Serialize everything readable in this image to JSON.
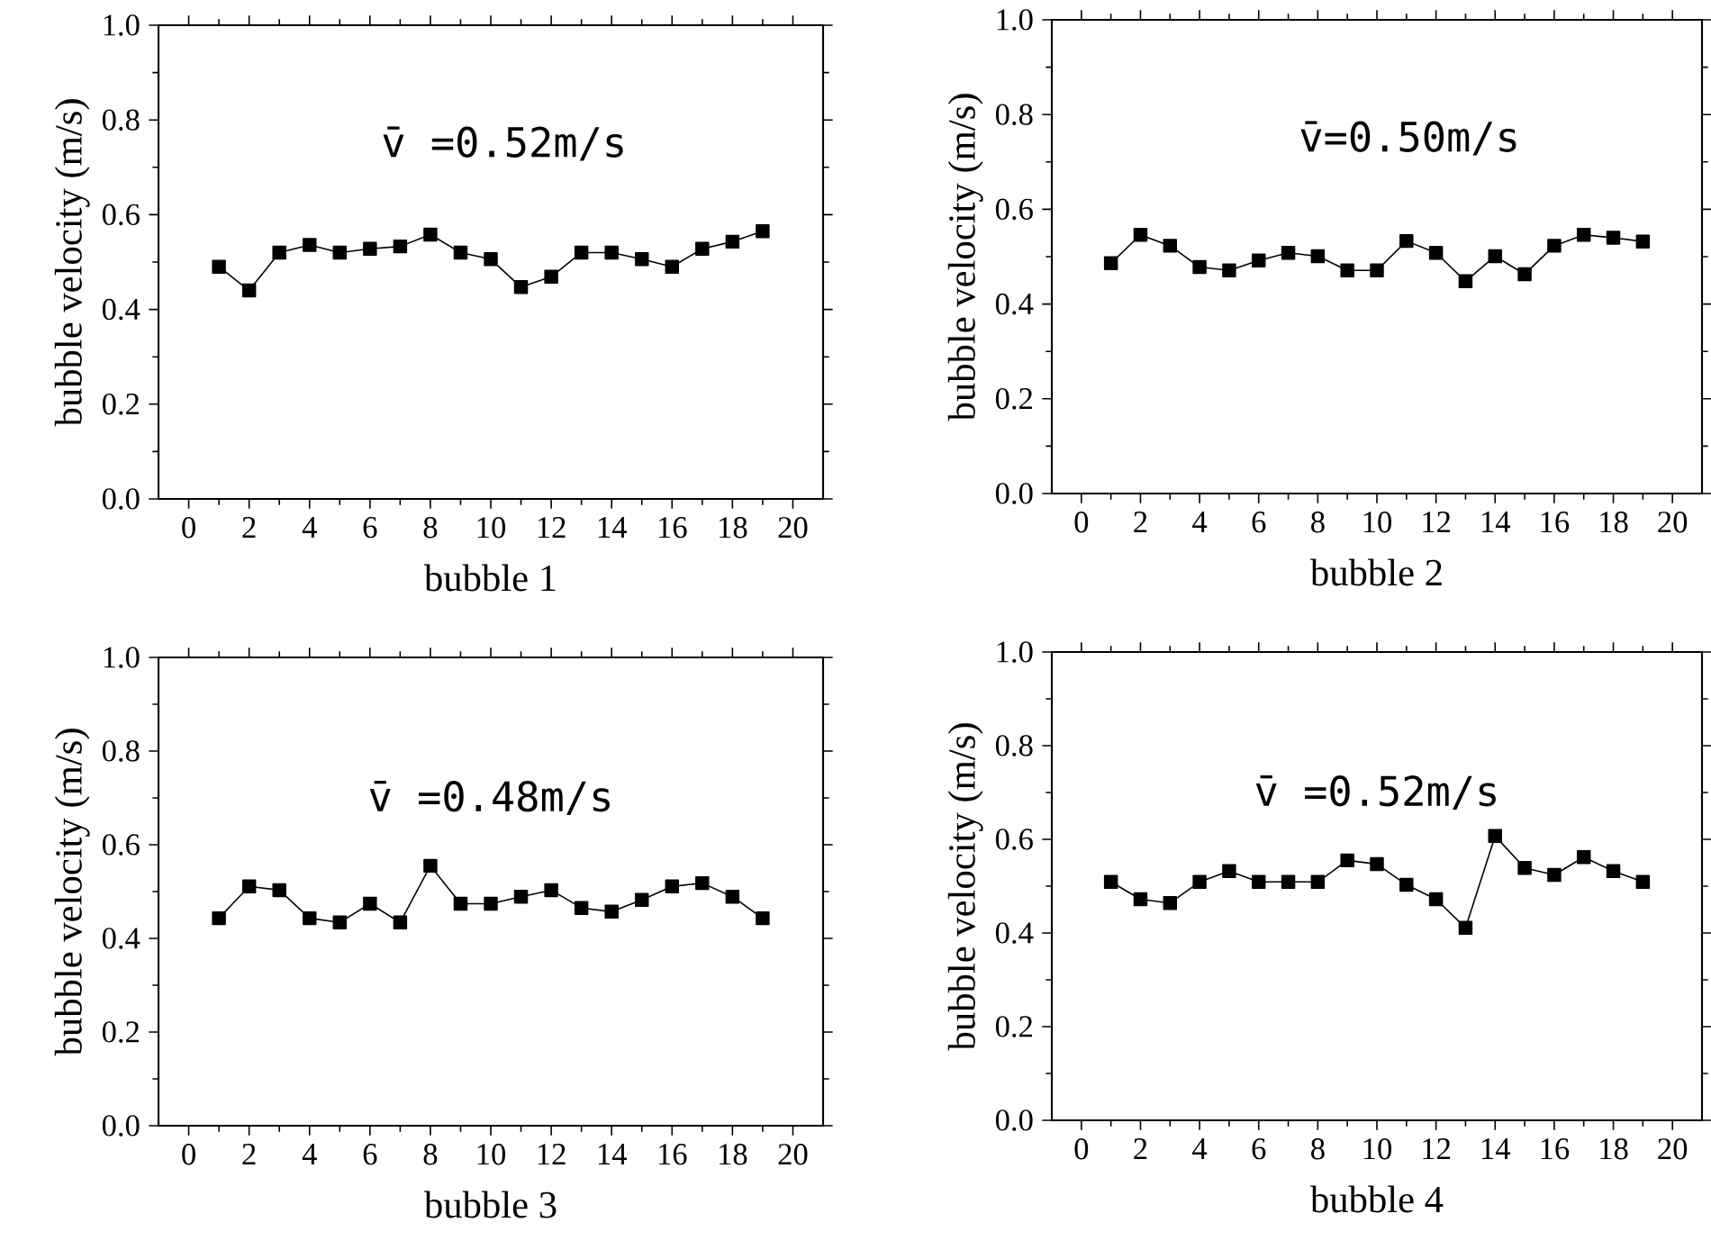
{
  "chart_data": [
    {
      "type": "line",
      "xlabel": "bubble 1",
      "ylabel": "bubble velocity (m/s)",
      "annotations": [
        "v̄ =0.52m/s"
      ],
      "marker": "square",
      "x": [
        1,
        2,
        3,
        4,
        5,
        6,
        7,
        8,
        9,
        10,
        11,
        12,
        13,
        14,
        15,
        16,
        17,
        18,
        19
      ],
      "xlim": [
        -1,
        21
      ],
      "xticks": [
        0,
        2,
        4,
        6,
        8,
        10,
        12,
        14,
        16,
        18,
        20
      ],
      "ylim": [
        0,
        1
      ],
      "yticks": [
        {
          "value": 0,
          "label": "0.0"
        },
        {
          "value": 0.2,
          "label": "0.2"
        },
        {
          "value": 0.4,
          "label": "0.4"
        },
        {
          "value": 0.6,
          "label": "0.6"
        },
        {
          "value": 0.8,
          "label": "0.8"
        },
        {
          "value": 1,
          "label": "1.0"
        }
      ],
      "series": [
        {
          "color": "#000000",
          "values": [
            0.49,
            0.44,
            0.52,
            0.536,
            0.52,
            0.528,
            0.533,
            0.558,
            0.52,
            0.506,
            0.447,
            0.469,
            0.52,
            0.52,
            0.506,
            0.49,
            0.528,
            0.543,
            0.565
          ]
        }
      ]
    },
    {
      "type": "line",
      "xlabel": "bubble 2",
      "ylabel": "bubble velocity (m/s)",
      "annotations": [
        "v̄=0.50m/s"
      ],
      "marker": "square",
      "x": [
        1,
        2,
        3,
        4,
        5,
        6,
        7,
        8,
        9,
        10,
        11,
        12,
        13,
        14,
        15,
        16,
        17,
        18,
        19
      ],
      "xlim": [
        -1,
        21
      ],
      "xticks": [
        0,
        2,
        4,
        6,
        8,
        10,
        12,
        14,
        16,
        18,
        20
      ],
      "ylim": [
        0,
        1
      ],
      "yticks": [
        {
          "value": 0,
          "label": "0.0"
        },
        {
          "value": 0.2,
          "label": "0.2"
        },
        {
          "value": 0.4,
          "label": "0.4"
        },
        {
          "value": 0.6,
          "label": "0.6"
        },
        {
          "value": 0.8,
          "label": "0.8"
        },
        {
          "value": 1,
          "label": "1.0"
        }
      ],
      "series": [
        {
          "color": "#000000",
          "values": [
            0.486,
            0.546,
            0.523,
            0.478,
            0.471,
            0.492,
            0.508,
            0.501,
            0.471,
            0.471,
            0.533,
            0.508,
            0.448,
            0.501,
            0.463,
            0.523,
            0.546,
            0.54,
            0.532
          ]
        }
      ]
    },
    {
      "type": "line",
      "xlabel": "bubble 3",
      "ylabel": "bubble velocity (m/s)",
      "annotations": [
        "v̄ =0.48m/s"
      ],
      "marker": "square",
      "x": [
        1,
        2,
        3,
        4,
        5,
        6,
        7,
        8,
        9,
        10,
        11,
        12,
        13,
        14,
        15,
        16,
        17,
        18,
        19
      ],
      "xlim": [
        -1,
        21
      ],
      "xticks": [
        0,
        2,
        4,
        6,
        8,
        10,
        12,
        14,
        16,
        18,
        20
      ],
      "ylim": [
        0,
        1
      ],
      "yticks": [
        {
          "value": 0,
          "label": "0.0"
        },
        {
          "value": 0.2,
          "label": "0.2"
        },
        {
          "value": 0.4,
          "label": "0.4"
        },
        {
          "value": 0.6,
          "label": "0.6"
        },
        {
          "value": 0.8,
          "label": "0.8"
        },
        {
          "value": 1,
          "label": "1.0"
        }
      ],
      "series": [
        {
          "color": "#000000",
          "values": [
            0.443,
            0.511,
            0.503,
            0.443,
            0.434,
            0.474,
            0.434,
            0.555,
            0.474,
            0.474,
            0.489,
            0.503,
            0.465,
            0.457,
            0.482,
            0.511,
            0.518,
            0.489,
            0.443
          ]
        }
      ]
    },
    {
      "type": "line",
      "xlabel": "bubble 4",
      "ylabel": "bubble velocity (m/s)",
      "annotations": [
        "v̄ =0.52m/s"
      ],
      "marker": "square",
      "x": [
        1,
        2,
        3,
        4,
        5,
        6,
        7,
        8,
        9,
        10,
        11,
        12,
        13,
        14,
        15,
        16,
        17,
        18,
        19
      ],
      "xlim": [
        -1,
        21
      ],
      "xticks": [
        0,
        2,
        4,
        6,
        8,
        10,
        12,
        14,
        16,
        18,
        20
      ],
      "ylim": [
        0,
        1
      ],
      "yticks": [
        {
          "value": 0,
          "label": "0.0"
        },
        {
          "value": 0.2,
          "label": "0.2"
        },
        {
          "value": 0.4,
          "label": "0.4"
        },
        {
          "value": 0.6,
          "label": "0.6"
        },
        {
          "value": 0.8,
          "label": "0.8"
        },
        {
          "value": 1,
          "label": "1.0"
        }
      ],
      "series": [
        {
          "color": "#000000",
          "values": [
            0.509,
            0.472,
            0.464,
            0.509,
            0.532,
            0.509,
            0.509,
            0.509,
            0.555,
            0.547,
            0.503,
            0.472,
            0.411,
            0.607,
            0.539,
            0.524,
            0.562,
            0.532,
            0.509
          ]
        }
      ]
    }
  ]
}
